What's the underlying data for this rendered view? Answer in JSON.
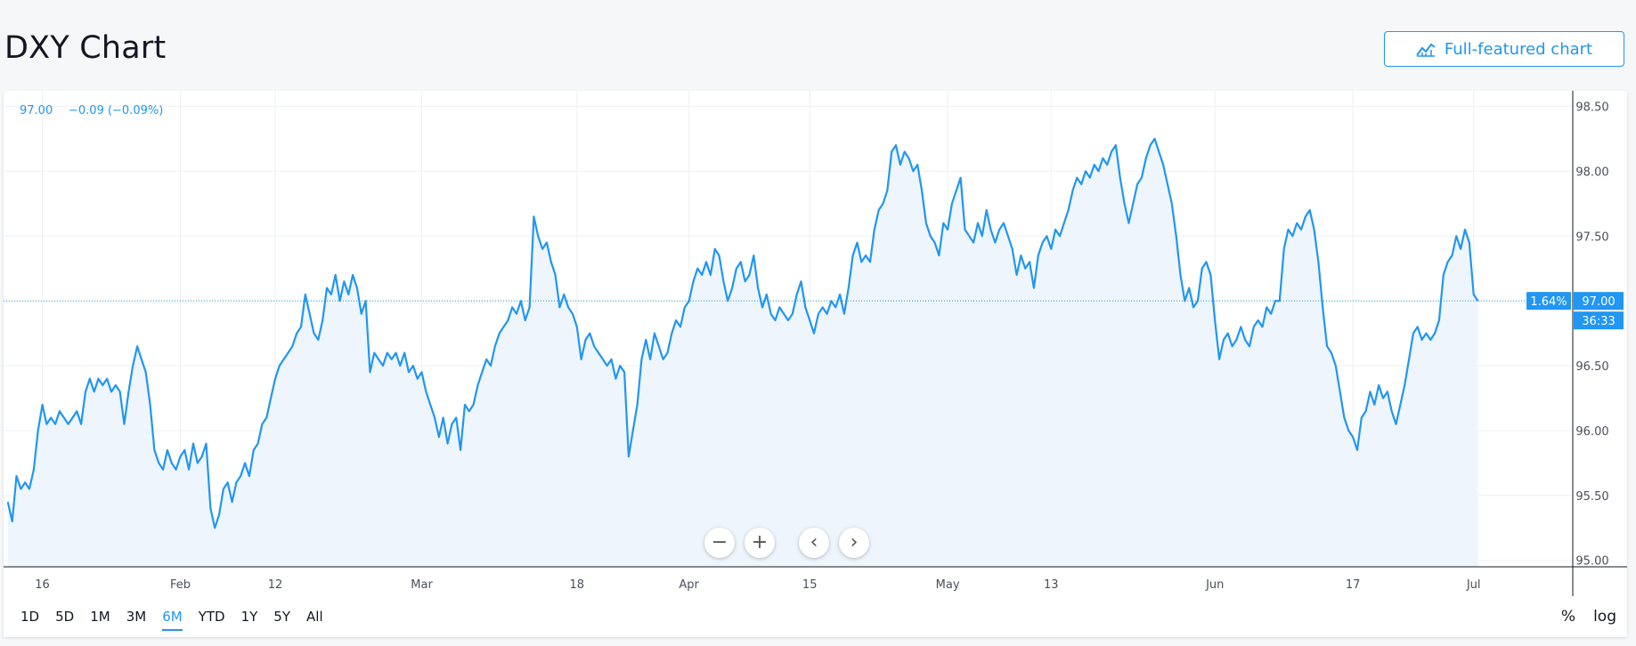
{
  "page": {
    "title": "DXY Chart",
    "full_chart_button": "Full-featured chart",
    "full_chart_icon": "chart-line-icon"
  },
  "legend": {
    "last": "97.00",
    "change": "−0.09 (−0.09%)"
  },
  "price_label": {
    "percent": "1.64%",
    "value": "97.00",
    "countdown": "36:33"
  },
  "controls": {
    "zoom_out": "−",
    "zoom_in": "+",
    "scroll_left": "‹",
    "scroll_right": "›"
  },
  "timeframes": [
    "1D",
    "5D",
    "1M",
    "3M",
    "6M",
    "YTD",
    "1Y",
    "5Y",
    "All"
  ],
  "active_timeframe": "6M",
  "scale_options": {
    "percent": "%",
    "log": "log"
  },
  "colors": {
    "line": "#2196f3",
    "area": "#eef5fd",
    "grid": "#eef0f3",
    "label_bg": "#2196f3"
  },
  "chart_data": {
    "type": "area",
    "symbol": "DXY",
    "ylim": [
      94.95,
      98.62
    ],
    "y_ticks": [
      "95.00",
      "95.50",
      "96.00",
      "96.50",
      "97.00",
      "97.50",
      "98.00",
      "98.50"
    ],
    "x_ticks": [
      {
        "label": "16",
        "day": 15
      },
      {
        "label": "Feb",
        "day": 31
      },
      {
        "label": "12",
        "day": 42
      },
      {
        "label": "Mar",
        "day": 59
      },
      {
        "label": "18",
        "day": 77
      },
      {
        "label": "Apr",
        "day": 90
      },
      {
        "label": "15",
        "day": 104
      },
      {
        "label": "May",
        "day": 120
      },
      {
        "label": "13",
        "day": 132
      },
      {
        "label": "Jun",
        "day": 151
      },
      {
        "label": "17",
        "day": 167
      },
      {
        "label": "Jul",
        "day": 181
      }
    ],
    "x_range": [
      10.5,
      192.5
    ],
    "x_unit": "day of year (2019)",
    "last_value": 97.0,
    "points": [
      [
        11,
        95.45
      ],
      [
        11.5,
        95.3
      ],
      [
        12,
        95.65
      ],
      [
        12.5,
        95.55
      ],
      [
        13,
        95.6
      ],
      [
        13.5,
        95.55
      ],
      [
        14,
        95.7
      ],
      [
        14.5,
        96.0
      ],
      [
        15,
        96.2
      ],
      [
        15.5,
        96.05
      ],
      [
        16,
        96.1
      ],
      [
        16.5,
        96.05
      ],
      [
        17,
        96.15
      ],
      [
        17.5,
        96.1
      ],
      [
        18,
        96.05
      ],
      [
        18.5,
        96.1
      ],
      [
        19,
        96.15
      ],
      [
        19.5,
        96.05
      ],
      [
        20,
        96.3
      ],
      [
        20.5,
        96.4
      ],
      [
        21,
        96.3
      ],
      [
        21.5,
        96.4
      ],
      [
        22,
        96.35
      ],
      [
        22.5,
        96.4
      ],
      [
        23,
        96.3
      ],
      [
        23.5,
        96.35
      ],
      [
        24,
        96.3
      ],
      [
        24.5,
        96.05
      ],
      [
        25,
        96.3
      ],
      [
        25.5,
        96.5
      ],
      [
        26,
        96.65
      ],
      [
        26.5,
        96.55
      ],
      [
        27,
        96.45
      ],
      [
        27.5,
        96.2
      ],
      [
        28,
        95.85
      ],
      [
        28.5,
        95.75
      ],
      [
        29,
        95.7
      ],
      [
        29.5,
        95.85
      ],
      [
        30,
        95.75
      ],
      [
        30.5,
        95.7
      ],
      [
        31,
        95.8
      ],
      [
        31.5,
        95.85
      ],
      [
        32,
        95.7
      ],
      [
        32.5,
        95.9
      ],
      [
        33,
        95.75
      ],
      [
        33.5,
        95.8
      ],
      [
        34,
        95.9
      ],
      [
        34.5,
        95.4
      ],
      [
        35,
        95.25
      ],
      [
        35.5,
        95.35
      ],
      [
        36,
        95.55
      ],
      [
        36.5,
        95.6
      ],
      [
        37,
        95.45
      ],
      [
        37.5,
        95.6
      ],
      [
        38,
        95.65
      ],
      [
        38.5,
        95.75
      ],
      [
        39,
        95.65
      ],
      [
        39.5,
        95.85
      ],
      [
        40,
        95.9
      ],
      [
        40.5,
        96.05
      ],
      [
        41,
        96.1
      ],
      [
        41.5,
        96.25
      ],
      [
        42,
        96.4
      ],
      [
        42.5,
        96.5
      ],
      [
        43,
        96.55
      ],
      [
        43.5,
        96.6
      ],
      [
        44,
        96.65
      ],
      [
        44.5,
        96.75
      ],
      [
        45,
        96.8
      ],
      [
        45.5,
        97.05
      ],
      [
        46,
        96.9
      ],
      [
        46.5,
        96.75
      ],
      [
        47,
        96.7
      ],
      [
        47.5,
        96.85
      ],
      [
        48,
        97.1
      ],
      [
        48.5,
        97.05
      ],
      [
        49,
        97.2
      ],
      [
        49.5,
        97.0
      ],
      [
        50,
        97.15
      ],
      [
        50.5,
        97.05
      ],
      [
        51,
        97.2
      ],
      [
        51.5,
        97.1
      ],
      [
        52,
        96.9
      ],
      [
        52.5,
        97.0
      ],
      [
        53,
        96.45
      ],
      [
        53.5,
        96.6
      ],
      [
        54,
        96.55
      ],
      [
        54.5,
        96.5
      ],
      [
        55,
        96.6
      ],
      [
        55.5,
        96.55
      ],
      [
        56,
        96.6
      ],
      [
        56.5,
        96.5
      ],
      [
        57,
        96.6
      ],
      [
        57.5,
        96.45
      ],
      [
        58,
        96.5
      ],
      [
        58.5,
        96.4
      ],
      [
        59,
        96.45
      ],
      [
        59.5,
        96.3
      ],
      [
        60,
        96.2
      ],
      [
        60.5,
        96.1
      ],
      [
        61,
        95.95
      ],
      [
        61.5,
        96.1
      ],
      [
        62,
        95.9
      ],
      [
        62.5,
        96.05
      ],
      [
        63,
        96.1
      ],
      [
        63.5,
        95.85
      ],
      [
        64,
        96.2
      ],
      [
        64.5,
        96.15
      ],
      [
        65,
        96.2
      ],
      [
        65.5,
        96.35
      ],
      [
        66,
        96.45
      ],
      [
        66.5,
        96.55
      ],
      [
        67,
        96.5
      ],
      [
        67.5,
        96.65
      ],
      [
        68,
        96.75
      ],
      [
        68.5,
        96.8
      ],
      [
        69,
        96.85
      ],
      [
        69.5,
        96.95
      ],
      [
        70,
        96.9
      ],
      [
        70.5,
        97.0
      ],
      [
        71,
        96.85
      ],
      [
        71.5,
        96.95
      ],
      [
        72,
        97.65
      ],
      [
        72.5,
        97.5
      ],
      [
        73,
        97.4
      ],
      [
        73.5,
        97.45
      ],
      [
        74,
        97.3
      ],
      [
        74.5,
        97.2
      ],
      [
        75,
        96.95
      ],
      [
        75.5,
        97.05
      ],
      [
        76,
        96.95
      ],
      [
        76.5,
        96.9
      ],
      [
        77,
        96.8
      ],
      [
        77.5,
        96.55
      ],
      [
        78,
        96.7
      ],
      [
        78.5,
        96.75
      ],
      [
        79,
        96.65
      ],
      [
        79.5,
        96.6
      ],
      [
        80,
        96.55
      ],
      [
        80.5,
        96.5
      ],
      [
        81,
        96.55
      ],
      [
        81.5,
        96.4
      ],
      [
        82,
        96.5
      ],
      [
        82.5,
        96.45
      ],
      [
        83,
        95.8
      ],
      [
        83.5,
        96.0
      ],
      [
        84,
        96.2
      ],
      [
        84.5,
        96.55
      ],
      [
        85,
        96.7
      ],
      [
        85.5,
        96.55
      ],
      [
        86,
        96.75
      ],
      [
        86.5,
        96.65
      ],
      [
        87,
        96.55
      ],
      [
        87.5,
        96.6
      ],
      [
        88,
        96.75
      ],
      [
        88.5,
        96.85
      ],
      [
        89,
        96.8
      ],
      [
        89.5,
        96.95
      ],
      [
        90,
        97.0
      ],
      [
        90.5,
        97.15
      ],
      [
        91,
        97.25
      ],
      [
        91.5,
        97.2
      ],
      [
        92,
        97.3
      ],
      [
        92.5,
        97.2
      ],
      [
        93,
        97.4
      ],
      [
        93.5,
        97.35
      ],
      [
        94,
        97.15
      ],
      [
        94.5,
        97.0
      ],
      [
        95,
        97.1
      ],
      [
        95.5,
        97.25
      ],
      [
        96,
        97.3
      ],
      [
        96.5,
        97.15
      ],
      [
        97,
        97.2
      ],
      [
        97.5,
        97.35
      ],
      [
        98,
        97.1
      ],
      [
        98.5,
        96.95
      ],
      [
        99,
        97.05
      ],
      [
        99.5,
        96.9
      ],
      [
        100,
        96.85
      ],
      [
        100.5,
        96.95
      ],
      [
        101,
        96.9
      ],
      [
        101.5,
        96.85
      ],
      [
        102,
        96.9
      ],
      [
        102.5,
        97.05
      ],
      [
        103,
        97.15
      ],
      [
        103.5,
        96.95
      ],
      [
        104,
        96.85
      ],
      [
        104.5,
        96.75
      ],
      [
        105,
        96.9
      ],
      [
        105.5,
        96.95
      ],
      [
        106,
        96.9
      ],
      [
        106.5,
        97.0
      ],
      [
        107,
        96.95
      ],
      [
        107.5,
        97.05
      ],
      [
        108,
        96.9
      ],
      [
        108.5,
        97.1
      ],
      [
        109,
        97.35
      ],
      [
        109.5,
        97.45
      ],
      [
        110,
        97.3
      ],
      [
        110.5,
        97.35
      ],
      [
        111,
        97.3
      ],
      [
        111.5,
        97.55
      ],
      [
        112,
        97.7
      ],
      [
        112.5,
        97.75
      ],
      [
        113,
        97.85
      ],
      [
        113.5,
        98.15
      ],
      [
        114,
        98.2
      ],
      [
        114.5,
        98.05
      ],
      [
        115,
        98.15
      ],
      [
        115.5,
        98.1
      ],
      [
        116,
        98.0
      ],
      [
        116.5,
        98.05
      ],
      [
        117,
        97.85
      ],
      [
        117.5,
        97.6
      ],
      [
        118,
        97.5
      ],
      [
        118.5,
        97.45
      ],
      [
        119,
        97.35
      ],
      [
        119.5,
        97.6
      ],
      [
        120,
        97.55
      ],
      [
        120.5,
        97.75
      ],
      [
        121,
        97.85
      ],
      [
        121.5,
        97.95
      ],
      [
        122,
        97.55
      ],
      [
        122.5,
        97.5
      ],
      [
        123,
        97.45
      ],
      [
        123.5,
        97.6
      ],
      [
        124,
        97.5
      ],
      [
        124.5,
        97.7
      ],
      [
        125,
        97.55
      ],
      [
        125.5,
        97.45
      ],
      [
        126,
        97.55
      ],
      [
        126.5,
        97.6
      ],
      [
        127,
        97.5
      ],
      [
        127.5,
        97.4
      ],
      [
        128,
        97.2
      ],
      [
        128.5,
        97.35
      ],
      [
        129,
        97.25
      ],
      [
        129.5,
        97.3
      ],
      [
        130,
        97.1
      ],
      [
        130.5,
        97.35
      ],
      [
        131,
        97.45
      ],
      [
        131.5,
        97.5
      ],
      [
        132,
        97.4
      ],
      [
        132.5,
        97.55
      ],
      [
        133,
        97.5
      ],
      [
        133.5,
        97.6
      ],
      [
        134,
        97.7
      ],
      [
        134.5,
        97.85
      ],
      [
        135,
        97.95
      ],
      [
        135.5,
        97.9
      ],
      [
        136,
        98.0
      ],
      [
        136.5,
        97.95
      ],
      [
        137,
        98.05
      ],
      [
        137.5,
        98.0
      ],
      [
        138,
        98.1
      ],
      [
        138.5,
        98.05
      ],
      [
        139,
        98.15
      ],
      [
        139.5,
        98.2
      ],
      [
        140,
        97.95
      ],
      [
        140.5,
        97.75
      ],
      [
        141,
        97.6
      ],
      [
        141.5,
        97.75
      ],
      [
        142,
        97.9
      ],
      [
        142.5,
        97.95
      ],
      [
        143,
        98.1
      ],
      [
        143.5,
        98.2
      ],
      [
        144,
        98.25
      ],
      [
        144.5,
        98.15
      ],
      [
        145,
        98.05
      ],
      [
        145.5,
        97.9
      ],
      [
        146,
        97.75
      ],
      [
        146.5,
        97.5
      ],
      [
        147,
        97.2
      ],
      [
        147.5,
        97.0
      ],
      [
        148,
        97.1
      ],
      [
        148.5,
        96.95
      ],
      [
        149,
        97.0
      ],
      [
        149.5,
        97.25
      ],
      [
        150,
        97.3
      ],
      [
        150.5,
        97.2
      ],
      [
        151,
        96.85
      ],
      [
        151.5,
        96.55
      ],
      [
        152,
        96.7
      ],
      [
        152.5,
        96.75
      ],
      [
        153,
        96.65
      ],
      [
        153.5,
        96.7
      ],
      [
        154,
        96.8
      ],
      [
        154.5,
        96.7
      ],
      [
        155,
        96.65
      ],
      [
        155.5,
        96.8
      ],
      [
        156,
        96.85
      ],
      [
        156.5,
        96.8
      ],
      [
        157,
        96.95
      ],
      [
        157.5,
        96.9
      ],
      [
        158,
        97.0
      ],
      [
        158.5,
        97.0
      ],
      [
        159,
        97.4
      ],
      [
        159.5,
        97.55
      ],
      [
        160,
        97.5
      ],
      [
        160.5,
        97.6
      ],
      [
        161,
        97.55
      ],
      [
        161.5,
        97.65
      ],
      [
        162,
        97.7
      ],
      [
        162.5,
        97.55
      ],
      [
        163,
        97.3
      ],
      [
        163.5,
        96.95
      ],
      [
        164,
        96.65
      ],
      [
        164.5,
        96.6
      ],
      [
        165,
        96.5
      ],
      [
        165.5,
        96.3
      ],
      [
        166,
        96.1
      ],
      [
        166.5,
        96.0
      ],
      [
        167,
        95.95
      ],
      [
        167.5,
        95.85
      ],
      [
        168,
        96.1
      ],
      [
        168.5,
        96.15
      ],
      [
        169,
        96.3
      ],
      [
        169.5,
        96.2
      ],
      [
        170,
        96.35
      ],
      [
        170.5,
        96.25
      ],
      [
        171,
        96.3
      ],
      [
        171.5,
        96.15
      ],
      [
        172,
        96.05
      ],
      [
        172.5,
        96.2
      ],
      [
        173,
        96.35
      ],
      [
        173.5,
        96.55
      ],
      [
        174,
        96.75
      ],
      [
        174.5,
        96.8
      ],
      [
        175,
        96.7
      ],
      [
        175.5,
        96.75
      ],
      [
        176,
        96.7
      ],
      [
        176.5,
        96.75
      ],
      [
        177,
        96.85
      ],
      [
        177.5,
        97.2
      ],
      [
        178,
        97.3
      ],
      [
        178.5,
        97.35
      ],
      [
        179,
        97.5
      ],
      [
        179.5,
        97.4
      ],
      [
        180,
        97.55
      ],
      [
        180.5,
        97.45
      ],
      [
        181,
        97.05
      ],
      [
        181.5,
        97.0
      ]
    ]
  }
}
